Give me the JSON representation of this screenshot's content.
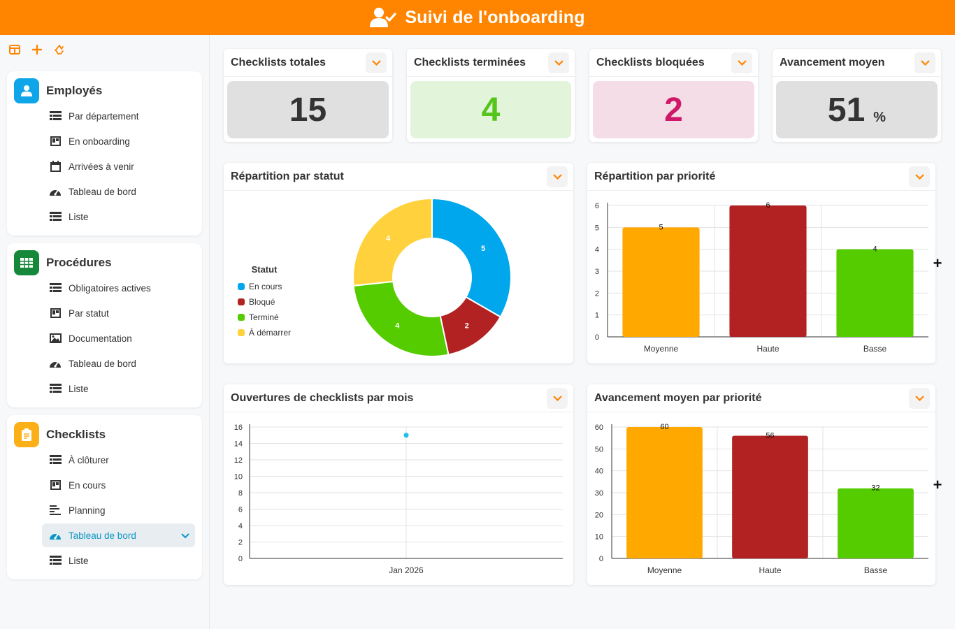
{
  "header": {
    "title": "Suivi de l'onboarding",
    "icon": "user-check-icon"
  },
  "sidebar": {
    "toolbar": [
      {
        "icon": "layout-icon"
      },
      {
        "icon": "plus-icon"
      },
      {
        "icon": "recycle-icon"
      }
    ],
    "sections": [
      {
        "title": "Employés",
        "icon": "user-icon",
        "color": "#0ea5e9",
        "items": [
          {
            "label": "Par département",
            "icon": "table-icon"
          },
          {
            "label": "En onboarding",
            "icon": "kanban-icon"
          },
          {
            "label": "Arrivées à venir",
            "icon": "calendar-icon"
          },
          {
            "label": "Tableau de bord",
            "icon": "gauge-icon"
          },
          {
            "label": "Liste",
            "icon": "table-icon"
          }
        ]
      },
      {
        "title": "Procédures",
        "icon": "grid-icon",
        "color": "#16883a",
        "items": [
          {
            "label": "Obligatoires actives",
            "icon": "table-icon"
          },
          {
            "label": "Par statut",
            "icon": "kanban-icon"
          },
          {
            "label": "Documentation",
            "icon": "image-icon"
          },
          {
            "label": "Tableau de bord",
            "icon": "gauge-icon"
          },
          {
            "label": "Liste",
            "icon": "table-icon"
          }
        ]
      },
      {
        "title": "Checklists",
        "icon": "clipboard-icon",
        "color": "#fbb017",
        "items": [
          {
            "label": "À clôturer",
            "icon": "table-icon"
          },
          {
            "label": "En cours",
            "icon": "kanban-icon"
          },
          {
            "label": "Planning",
            "icon": "gantt-icon"
          },
          {
            "label": "Tableau de bord",
            "icon": "gauge-icon",
            "active": true
          },
          {
            "label": "Liste",
            "icon": "table-icon"
          }
        ]
      }
    ]
  },
  "kpis": [
    {
      "title": "Checklists totales",
      "value": "15",
      "bg": "#e0e0e0",
      "color": "#333333"
    },
    {
      "title": "Checklists terminées",
      "value": "4",
      "bg": "#e2f5da",
      "color": "#55c51b"
    },
    {
      "title": "Checklists bloquées",
      "value": "2",
      "bg": "#f4dde6",
      "color": "#d0186a"
    },
    {
      "title": "Avancement moyen",
      "value": "51",
      "unit": "%",
      "bg": "#e0e0e0",
      "color": "#333333"
    }
  ],
  "charts": {
    "status": {
      "title": "Répartition par statut",
      "legend_title": "Statut"
    },
    "priority": {
      "title": "Répartition par priorité"
    },
    "monthly": {
      "title": "Ouvertures de checklists par mois"
    },
    "progress": {
      "title": "Avancement moyen par priorité"
    }
  },
  "chart_data": [
    {
      "type": "pie",
      "legend_title": "Statut",
      "legend_position": "left",
      "categories": [
        "En cours",
        "Bloqué",
        "Terminé",
        "À démarrer"
      ],
      "values": [
        5,
        2,
        4,
        4
      ],
      "colors": [
        "#00a7ec",
        "#b22222",
        "#55cc00",
        "#ffd23d"
      ]
    },
    {
      "type": "bar",
      "categories": [
        "Moyenne",
        "Haute",
        "Basse"
      ],
      "values": [
        5,
        6,
        4
      ],
      "colors": [
        "#ffa800",
        "#b22222",
        "#55cc00"
      ],
      "ylim": [
        0,
        6
      ],
      "yticks": [
        0,
        1,
        2,
        3,
        4,
        5,
        6
      ],
      "grid": true
    },
    {
      "type": "line",
      "x": [
        "Jan 2026"
      ],
      "values": [
        15
      ],
      "ylim": [
        0,
        16
      ],
      "yticks": [
        0,
        2,
        4,
        6,
        8,
        10,
        12,
        14,
        16
      ],
      "color": "#1ec0e8",
      "grid": true
    },
    {
      "type": "bar",
      "categories": [
        "Moyenne",
        "Haute",
        "Basse"
      ],
      "values": [
        60,
        56,
        32
      ],
      "colors": [
        "#ffa800",
        "#b22222",
        "#55cc00"
      ],
      "ylim": [
        0,
        60
      ],
      "yticks": [
        0,
        10,
        20,
        30,
        40,
        50,
        60
      ],
      "grid": true
    }
  ]
}
